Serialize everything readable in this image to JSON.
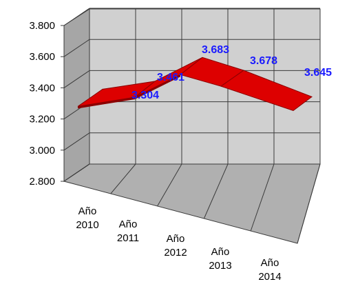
{
  "chart_data": {
    "type": "area",
    "title": "",
    "xlabel": "",
    "ylabel": "",
    "categories": [
      "Año 2010",
      "Año 2011",
      "Año 2012",
      "Año 2013",
      "Año 2014"
    ],
    "category_lines": [
      [
        "Año",
        "2010"
      ],
      [
        "Año",
        "2011"
      ],
      [
        "Año",
        "2012"
      ],
      [
        "Año",
        "2013"
      ],
      [
        "Año",
        "2014"
      ]
    ],
    "values": [
      3304,
      3461,
      3683,
      3678,
      3645
    ],
    "data_labels": [
      "3.304",
      "3.461",
      "3.683",
      "3.678",
      "3.645"
    ],
    "ylim": [
      2800,
      3800
    ],
    "yticks": [
      2800,
      3000,
      3200,
      3400,
      3600,
      3800
    ],
    "ytick_labels": [
      "2.800",
      "3.000",
      "3.200",
      "3.400",
      "3.600",
      "3.800"
    ],
    "style": "3d-ribbon",
    "grid": true,
    "legend": "none",
    "colors": {
      "ribbon_top": "#dd0000",
      "ribbon_dark": "#8b0000",
      "back_wall": "#d0d0d0",
      "side_wall": "#a6a6a6",
      "floor": "#b0b0b0",
      "grid": "#3a3a3a",
      "data_label": "#1a1aff"
    }
  }
}
